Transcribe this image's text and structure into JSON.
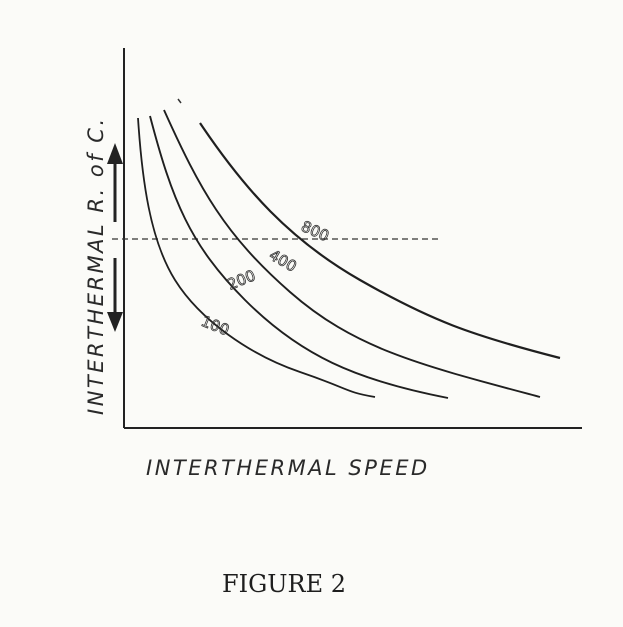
{
  "chart_data": {
    "type": "line",
    "xlabel": "INTERTHERMAL SPEED",
    "ylabel": "INTERTHERMAL R. of C.",
    "series": [
      {
        "name": "800",
        "values": [
          [
            0.2,
            0.85
          ],
          [
            0.3,
            0.62
          ],
          [
            0.45,
            0.45
          ],
          [
            0.6,
            0.33
          ],
          [
            0.78,
            0.24
          ],
          [
            1.0,
            0.17
          ]
        ]
      },
      {
        "name": "400",
        "values": [
          [
            0.1,
            0.85
          ],
          [
            0.2,
            0.6
          ],
          [
            0.35,
            0.38
          ],
          [
            0.5,
            0.26
          ],
          [
            0.7,
            0.16
          ],
          [
            0.95,
            0.08
          ]
        ]
      },
      {
        "name": "200",
        "values": [
          [
            0.06,
            0.85
          ],
          [
            0.12,
            0.6
          ],
          [
            0.22,
            0.36
          ],
          [
            0.35,
            0.2
          ],
          [
            0.5,
            0.11
          ],
          [
            0.75,
            0.05
          ]
        ]
      },
      {
        "name": "100",
        "values": [
          [
            0.04,
            0.85
          ],
          [
            0.08,
            0.55
          ],
          [
            0.14,
            0.31
          ],
          [
            0.24,
            0.15
          ],
          [
            0.38,
            0.08
          ],
          [
            0.58,
            0.04
          ]
        ]
      }
    ],
    "reference_line": {
      "y": 0.55,
      "style": "dashed"
    },
    "arrows": [
      "up",
      "down"
    ]
  },
  "caption": "FIGURE 2"
}
